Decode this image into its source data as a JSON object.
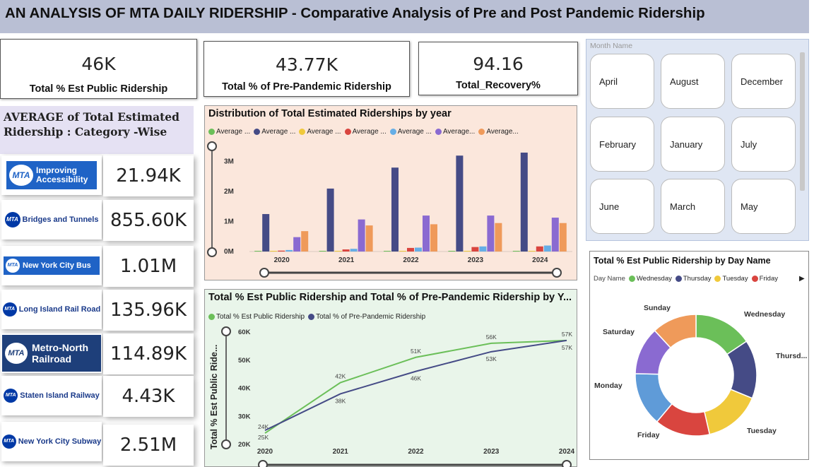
{
  "title": "AN ANALYSIS OF MTA DAILY RIDERSHIP - Comparative Analysis of Pre and Post Pandemic Ridership",
  "kpis": [
    {
      "value": "46K",
      "label": "Total  % Est Public Ridership"
    },
    {
      "value": "43.77K",
      "label": "Total % of Pre-Pandemic Ridership"
    },
    {
      "value": "94.16",
      "label": "Total_Recovery%"
    }
  ],
  "category_panel": {
    "title": "AVERAGE of Total Estimated Ridership : Category -Wise",
    "rows": [
      {
        "logo_text": "Improving Accessibility",
        "value": "21.94K"
      },
      {
        "logo_text": "Bridges and Tunnels",
        "value": "855.60K"
      },
      {
        "logo_text": "New York City Bus",
        "value": "1.01M"
      },
      {
        "logo_text": "Long Island Rail Road",
        "value": "135.96K"
      },
      {
        "logo_text": "Metro-North Railroad",
        "value": "114.89K"
      },
      {
        "logo_text": "Staten Island Railway",
        "value": "4.43K"
      },
      {
        "logo_text": "New York City Subway",
        "value": "2.51M"
      }
    ],
    "logo_mark": "MTA"
  },
  "bar_chart": {
    "title": "Distribution of Total Estimated Riderships by year",
    "legend": [
      "Average ...",
      "Average ...",
      "Average ...",
      "Average ...",
      "Average ...",
      "Average...",
      "Average..."
    ],
    "y_ticks": [
      "0M",
      "1M",
      "2M",
      "3M"
    ]
  },
  "line_chart": {
    "title": "Total  % Est Public Ridership and Total % of Pre-Pandemic Ridership by Y...",
    "legend": [
      "Total  % Est Public Ridership",
      "Total % of Pre-Pandemic Ridership"
    ],
    "ylabel": "Total % Est Public Ride...",
    "y_ticks": [
      "20K",
      "30K",
      "40K",
      "50K",
      "60K"
    ]
  },
  "slicer": {
    "title": "Month Name",
    "months": [
      "April",
      "August",
      "December",
      "February",
      "January",
      "July",
      "June",
      "March",
      "May"
    ]
  },
  "donut_chart": {
    "title": "Total  % Est Public Ridership by Day Name",
    "legend_title": "Day Name",
    "legend": [
      "Wednesday",
      "Thursday",
      "Tuesday",
      "Friday"
    ],
    "labels": [
      "Sunday",
      "Wednesday",
      "Saturday",
      "Thursd...",
      "Monday",
      "Friday",
      "Tuesday"
    ]
  },
  "colors": {
    "green": "#6bbf59",
    "navy": "#454b86",
    "yellow": "#f0c93b",
    "red": "#d9453f",
    "sky": "#66aee6",
    "purple": "#8a6ad1",
    "orange": "#ef9a5a",
    "blue": "#5f9bd8",
    "mta_blue": "#0039a6"
  },
  "chart_data": [
    {
      "type": "bar",
      "title": "Distribution of Total Estimated Riderships by year",
      "categories": [
        "2020",
        "2021",
        "2022",
        "2023",
        "2024"
      ],
      "series": [
        {
          "name": "Average ...",
          "values": [
            0.01,
            0.01,
            0.01,
            0.01,
            0.01
          ],
          "color": "#6bbf59"
        },
        {
          "name": "Average ...",
          "values": [
            1.25,
            2.1,
            2.8,
            3.2,
            3.3
          ],
          "color": "#454b86"
        },
        {
          "name": "Average ...",
          "values": [
            0.0,
            0.01,
            0.01,
            0.01,
            0.01
          ],
          "color": "#f0c93b"
        },
        {
          "name": "Average ...",
          "values": [
            0.03,
            0.07,
            0.12,
            0.15,
            0.17
          ],
          "color": "#d9453f"
        },
        {
          "name": "Average ...",
          "values": [
            0.05,
            0.09,
            0.13,
            0.17,
            0.2
          ],
          "color": "#66aee6"
        },
        {
          "name": "Average...",
          "values": [
            0.48,
            1.07,
            1.2,
            1.2,
            1.13
          ],
          "color": "#8a6ad1"
        },
        {
          "name": "Average...",
          "values": [
            0.68,
            0.87,
            0.91,
            0.95,
            0.95
          ],
          "color": "#ef9a5a"
        }
      ],
      "ylim": [
        0,
        3.3
      ],
      "y_ticks": [
        0,
        1,
        2,
        3
      ],
      "y_tick_labels": [
        "0M",
        "1M",
        "2M",
        "3M"
      ]
    },
    {
      "type": "line",
      "title": "Total  % Est Public Ridership and Total % of Pre-Pandemic Ridership by Y...",
      "ylabel": "Total % Est Public Ride...",
      "x": [
        "2020",
        "2021",
        "2022",
        "2023",
        "2024"
      ],
      "series": [
        {
          "name": "Total  % Est Public Ridership",
          "values": [
            24,
            42,
            51,
            56,
            57
          ],
          "labels": [
            "24K",
            "42K",
            "51K",
            "56K",
            "57K"
          ],
          "color": "#6bbf59"
        },
        {
          "name": "Total % of Pre-Pandemic Ridership",
          "values": [
            25,
            38,
            46,
            53,
            57
          ],
          "labels": [
            "25K",
            "38K",
            "46K",
            "53K",
            "57K"
          ],
          "color": "#454b86"
        }
      ],
      "ylim": [
        20,
        60
      ],
      "y_ticks": [
        20,
        30,
        40,
        50,
        60
      ],
      "y_tick_labels": [
        "20K",
        "30K",
        "40K",
        "50K",
        "60K"
      ]
    },
    {
      "type": "pie",
      "title": "Total  % Est Public Ridership by Day Name",
      "slices": [
        {
          "name": "Wednesday",
          "value": 15.6,
          "color": "#6bbf59"
        },
        {
          "name": "Thursd...",
          "value": 15.6,
          "color": "#454b86"
        },
        {
          "name": "Tuesday",
          "value": 15.2,
          "color": "#f0c93b"
        },
        {
          "name": "Friday",
          "value": 14.7,
          "color": "#d9453f"
        },
        {
          "name": "Monday",
          "value": 14.3,
          "color": "#5f9bd8"
        },
        {
          "name": "Saturday",
          "value": 12.7,
          "color": "#8a6ad1"
        },
        {
          "name": "Sunday",
          "value": 11.9,
          "color": "#ef9a5a"
        }
      ]
    }
  ]
}
